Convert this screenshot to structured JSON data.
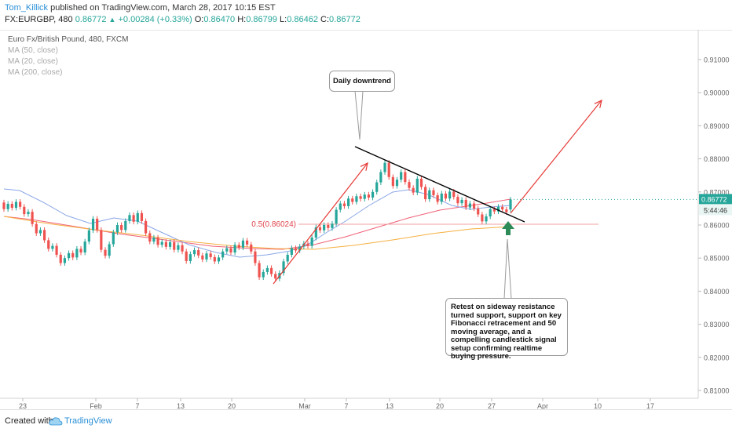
{
  "header": {
    "author": "Tom_Killick",
    "published_text": "published on TradingView.com, March 28, 2017 10:15 EST",
    "symbol": "FX:EURGBP, 480",
    "last": "0.86772",
    "change": "+0.00284 (+0.33%)",
    "open_label": "O:",
    "open": "0.86470",
    "high_label": "H:",
    "high": "0.86799",
    "low_label": "L:",
    "low": "0.86462",
    "close_label": "C:",
    "close": "0.86772",
    "up_icon": "triangle-up-icon"
  },
  "legend": {
    "title": "Euro Fx/British Pound, 480, FXCM",
    "ma50": "MA (50, close)",
    "ma20": "MA (20, close)",
    "ma200": "MA (200, close)"
  },
  "annotations": {
    "downtrend": "Daily downtrend",
    "retest": "Retest on sideway resistance turned support, support on key Fibonacci retracement and 50 moving average, and a compelling candlestick signal setup confirming realtime buying pressure.",
    "fib": "0.5(0.86024)"
  },
  "price_axis": {
    "current_price": "0.86772",
    "countdown": "5:44:46"
  },
  "footer": {
    "created_with": "Created with",
    "brand": "TradingView",
    "logo_icon": "tradingview-cloud-icon"
  },
  "colors": {
    "bull": "#26a69a",
    "bear": "#ef5350",
    "ma20": "#8aa6e6",
    "ma50": "#f06277",
    "ma200": "#f5b041",
    "arrow": "#e53935",
    "trendline": "#000000",
    "up_arrow": "#2e8b57"
  },
  "chart_data": {
    "type": "candlestick",
    "title": "Euro Fx/British Pound, 480, FXCM",
    "y_ticks": [
      "0.81000",
      "0.82000",
      "0.83000",
      "0.84000",
      "0.85000",
      "0.86000",
      "0.87000",
      "0.88000",
      "0.89000",
      "0.90000",
      "0.91000"
    ],
    "ylim": [
      0.8065,
      0.9175
    ],
    "x_ticks": [
      "23",
      "Feb",
      "7",
      "13",
      "20",
      "Mar",
      "7",
      "13",
      "20",
      "27",
      "Apr",
      "10",
      "17"
    ],
    "last_price": 0.86772,
    "fib_level": 0.86024,
    "candles_approx": [
      {
        "o": 0.8668,
        "c": 0.8648
      },
      {
        "o": 0.8648,
        "c": 0.8664
      },
      {
        "o": 0.8664,
        "c": 0.8652
      },
      {
        "o": 0.8652,
        "c": 0.867
      },
      {
        "o": 0.867,
        "c": 0.8655
      },
      {
        "o": 0.8655,
        "c": 0.8633
      },
      {
        "o": 0.8633,
        "c": 0.864
      },
      {
        "o": 0.864,
        "c": 0.8603
      },
      {
        "o": 0.8603,
        "c": 0.8575
      },
      {
        "o": 0.8575,
        "c": 0.8585
      },
      {
        "o": 0.8585,
        "c": 0.8554
      },
      {
        "o": 0.8554,
        "c": 0.8528
      },
      {
        "o": 0.8528,
        "c": 0.8537
      },
      {
        "o": 0.8537,
        "c": 0.851
      },
      {
        "o": 0.851,
        "c": 0.8485
      },
      {
        "o": 0.8485,
        "c": 0.85
      },
      {
        "o": 0.85,
        "c": 0.8515
      },
      {
        "o": 0.8515,
        "c": 0.8502
      },
      {
        "o": 0.8502,
        "c": 0.8528
      },
      {
        "o": 0.8528,
        "c": 0.8517
      },
      {
        "o": 0.8517,
        "c": 0.855
      },
      {
        "o": 0.855,
        "c": 0.8584
      },
      {
        "o": 0.8584,
        "c": 0.8619
      },
      {
        "o": 0.8619,
        "c": 0.8585
      },
      {
        "o": 0.8585,
        "c": 0.8525
      },
      {
        "o": 0.8525,
        "c": 0.8507
      },
      {
        "o": 0.8507,
        "c": 0.8542
      },
      {
        "o": 0.8542,
        "c": 0.8578
      },
      {
        "o": 0.8578,
        "c": 0.86
      },
      {
        "o": 0.86,
        "c": 0.8585
      },
      {
        "o": 0.8585,
        "c": 0.8612
      },
      {
        "o": 0.8612,
        "c": 0.863
      },
      {
        "o": 0.863,
        "c": 0.861
      },
      {
        "o": 0.861,
        "c": 0.8636
      },
      {
        "o": 0.8636,
        "c": 0.8612
      },
      {
        "o": 0.8612,
        "c": 0.8575
      },
      {
        "o": 0.8575,
        "c": 0.855
      },
      {
        "o": 0.855,
        "c": 0.8562
      },
      {
        "o": 0.8562,
        "c": 0.854
      },
      {
        "o": 0.854,
        "c": 0.8549
      },
      {
        "o": 0.8549,
        "c": 0.8534
      },
      {
        "o": 0.8534,
        "c": 0.8548
      },
      {
        "o": 0.8548,
        "c": 0.8525
      },
      {
        "o": 0.8525,
        "c": 0.8539
      },
      {
        "o": 0.8539,
        "c": 0.852
      },
      {
        "o": 0.852,
        "c": 0.8491
      },
      {
        "o": 0.8491,
        "c": 0.8512
      },
      {
        "o": 0.8512,
        "c": 0.8524
      },
      {
        "o": 0.8524,
        "c": 0.8508
      },
      {
        "o": 0.8508,
        "c": 0.8496
      },
      {
        "o": 0.8496,
        "c": 0.8514
      },
      {
        "o": 0.8514,
        "c": 0.8503
      },
      {
        "o": 0.8503,
        "c": 0.849
      },
      {
        "o": 0.849,
        "c": 0.8502
      },
      {
        "o": 0.8502,
        "c": 0.852
      },
      {
        "o": 0.852,
        "c": 0.853
      },
      {
        "o": 0.853,
        "c": 0.8517
      },
      {
        "o": 0.8517,
        "c": 0.854
      },
      {
        "o": 0.854,
        "c": 0.8532
      },
      {
        "o": 0.8532,
        "c": 0.8553
      },
      {
        "o": 0.8553,
        "c": 0.8541
      },
      {
        "o": 0.8541,
        "c": 0.852
      },
      {
        "o": 0.852,
        "c": 0.8485
      },
      {
        "o": 0.8485,
        "c": 0.8442
      },
      {
        "o": 0.8442,
        "c": 0.8458
      },
      {
        "o": 0.8458,
        "c": 0.847
      },
      {
        "o": 0.847,
        "c": 0.8452
      },
      {
        "o": 0.8452,
        "c": 0.8438
      },
      {
        "o": 0.8438,
        "c": 0.8455
      },
      {
        "o": 0.8455,
        "c": 0.849
      },
      {
        "o": 0.849,
        "c": 0.851
      },
      {
        "o": 0.851,
        "c": 0.853
      },
      {
        "o": 0.853,
        "c": 0.8523
      },
      {
        "o": 0.8523,
        "c": 0.8535
      },
      {
        "o": 0.8535,
        "c": 0.8544
      },
      {
        "o": 0.8544,
        "c": 0.8537
      },
      {
        "o": 0.8537,
        "c": 0.8562
      },
      {
        "o": 0.8562,
        "c": 0.8593
      },
      {
        "o": 0.8593,
        "c": 0.8584
      },
      {
        "o": 0.8584,
        "c": 0.86
      },
      {
        "o": 0.86,
        "c": 0.8591
      },
      {
        "o": 0.8591,
        "c": 0.8604
      },
      {
        "o": 0.8604,
        "c": 0.8646
      },
      {
        "o": 0.8646,
        "c": 0.8665
      },
      {
        "o": 0.8665,
        "c": 0.8657
      },
      {
        "o": 0.8657,
        "c": 0.868
      },
      {
        "o": 0.868,
        "c": 0.867
      },
      {
        "o": 0.867,
        "c": 0.8687
      },
      {
        "o": 0.8687,
        "c": 0.8679
      },
      {
        "o": 0.8679,
        "c": 0.8692
      },
      {
        "o": 0.8692,
        "c": 0.8683
      },
      {
        "o": 0.8683,
        "c": 0.87
      },
      {
        "o": 0.87,
        "c": 0.8729
      },
      {
        "o": 0.8729,
        "c": 0.876
      },
      {
        "o": 0.876,
        "c": 0.8788
      },
      {
        "o": 0.8788,
        "c": 0.8745
      },
      {
        "o": 0.8745,
        "c": 0.8718
      },
      {
        "o": 0.8718,
        "c": 0.8737
      },
      {
        "o": 0.8737,
        "c": 0.876
      },
      {
        "o": 0.876,
        "c": 0.873
      },
      {
        "o": 0.873,
        "c": 0.8712
      },
      {
        "o": 0.8712,
        "c": 0.8698
      },
      {
        "o": 0.8698,
        "c": 0.874
      },
      {
        "o": 0.874,
        "c": 0.8715
      },
      {
        "o": 0.8715,
        "c": 0.8678
      },
      {
        "o": 0.8678,
        "c": 0.8705
      },
      {
        "o": 0.8705,
        "c": 0.869
      },
      {
        "o": 0.869,
        "c": 0.867
      },
      {
        "o": 0.867,
        "c": 0.8695
      },
      {
        "o": 0.8695,
        "c": 0.868
      },
      {
        "o": 0.868,
        "c": 0.8701
      },
      {
        "o": 0.8701,
        "c": 0.8685
      },
      {
        "o": 0.8685,
        "c": 0.8666
      },
      {
        "o": 0.8666,
        "c": 0.8676
      },
      {
        "o": 0.8676,
        "c": 0.8653
      },
      {
        "o": 0.8653,
        "c": 0.8665
      },
      {
        "o": 0.8665,
        "c": 0.865
      },
      {
        "o": 0.865,
        "c": 0.8632
      },
      {
        "o": 0.8632,
        "c": 0.8611
      },
      {
        "o": 0.8611,
        "c": 0.8626
      },
      {
        "o": 0.8626,
        "c": 0.8648
      },
      {
        "o": 0.8648,
        "c": 0.8641
      },
      {
        "o": 0.8641,
        "c": 0.8655
      },
      {
        "o": 0.8655,
        "c": 0.8647
      },
      {
        "o": 0.8647,
        "c": 0.8639
      },
      {
        "o": 0.8647,
        "c": 0.8677
      }
    ]
  }
}
